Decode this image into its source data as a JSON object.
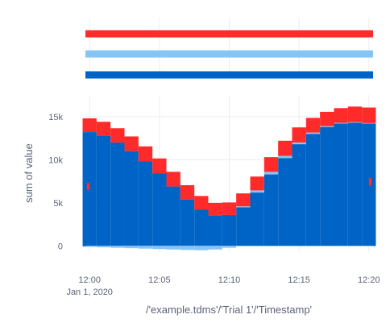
{
  "chart_data": [
    {
      "type": "bar",
      "role": "marginal-rug",
      "series": [
        {
          "color": "#ff2a2a"
        },
        {
          "color": "#86c4f4"
        },
        {
          "color": "#0063c6"
        }
      ]
    },
    {
      "type": "bar",
      "barmode": "relative",
      "xlabel": "/'example.tdms'/'Trial 1'/'Timestamp'",
      "ylabel": "sum of value",
      "x_ticks": [
        "12:00",
        "12:05",
        "12:10",
        "12:15",
        "12:20"
      ],
      "x_tick_sublabel": "Jan 1, 2020",
      "x_tick_minutes": [
        0,
        5,
        10,
        15,
        20
      ],
      "y_ticks": [
        "0",
        "5k",
        "10k",
        "15k"
      ],
      "y_tick_values": [
        0,
        5000,
        10000,
        15000
      ],
      "ylim": [
        -700,
        17500
      ],
      "xlim_minutes": [
        -0.3,
        20.3
      ],
      "grid": true,
      "series": [
        {
          "color": "#0063c6",
          "x_minutes": [
            -0.1,
            0,
            1,
            2,
            3,
            4,
            5,
            6,
            7,
            8,
            9,
            10,
            11,
            12,
            13,
            14,
            15,
            16,
            17,
            18,
            19,
            20,
            20.1
          ],
          "values": [
            6500,
            13200,
            12800,
            12000,
            11000,
            9800,
            8400,
            6900,
            5400,
            4200,
            3500,
            3600,
            4500,
            6200,
            8300,
            10200,
            11800,
            13000,
            13800,
            14200,
            14300,
            14200,
            7000
          ]
        },
        {
          "color": "#86c4f4",
          "x_minutes": [
            0,
            1,
            2,
            3,
            4,
            5,
            6,
            7,
            8,
            9,
            10,
            11,
            12,
            13,
            14,
            15,
            16,
            17,
            18,
            19,
            20
          ],
          "values": [
            -100,
            -150,
            -200,
            -250,
            -300,
            -350,
            -400,
            -450,
            -480,
            -400,
            -200,
            100,
            250,
            300,
            250,
            200,
            150,
            100,
            80,
            60,
            50
          ]
        },
        {
          "color": "#ff2a2a",
          "x_minutes": [
            -0.1,
            0,
            1,
            2,
            3,
            4,
            5,
            6,
            7,
            8,
            9,
            10,
            11,
            12,
            13,
            14,
            15,
            16,
            17,
            18,
            19,
            20,
            20.1
          ],
          "values": [
            800,
            1600,
            1600,
            1650,
            1700,
            1750,
            1750,
            1700,
            1650,
            1600,
            1500,
            1450,
            1500,
            1600,
            1700,
            1750,
            1750,
            1700,
            1650,
            1700,
            1800,
            1800,
            900
          ]
        }
      ]
    }
  ]
}
